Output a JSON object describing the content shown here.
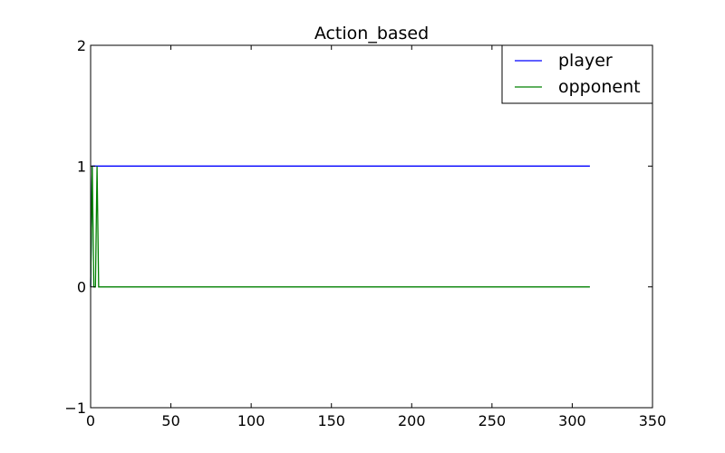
{
  "chart_data": {
    "type": "line",
    "title": "Action_based",
    "xlabel": "",
    "ylabel": "",
    "xlim": [
      0,
      350
    ],
    "ylim": [
      -1,
      2
    ],
    "xticks": [
      0,
      50,
      100,
      150,
      200,
      250,
      300,
      350
    ],
    "xtick_labels": [
      "0",
      "50",
      "100",
      "150",
      "200",
      "250",
      "300",
      "350"
    ],
    "yticks": [
      -1,
      0,
      1,
      2
    ],
    "ytick_labels": [
      "−1",
      "0",
      "1",
      "2"
    ],
    "grid": false,
    "legend_position": "top-right",
    "series": [
      {
        "name": "player",
        "color": "#0000ff",
        "x": [
          0,
          1,
          311
        ],
        "y": [
          0,
          1,
          1
        ]
      },
      {
        "name": "opponent",
        "color": "#008000",
        "x": [
          0,
          1,
          2,
          3,
          4,
          5,
          311
        ],
        "y": [
          0,
          1,
          0,
          0,
          1,
          0,
          0
        ]
      }
    ]
  }
}
